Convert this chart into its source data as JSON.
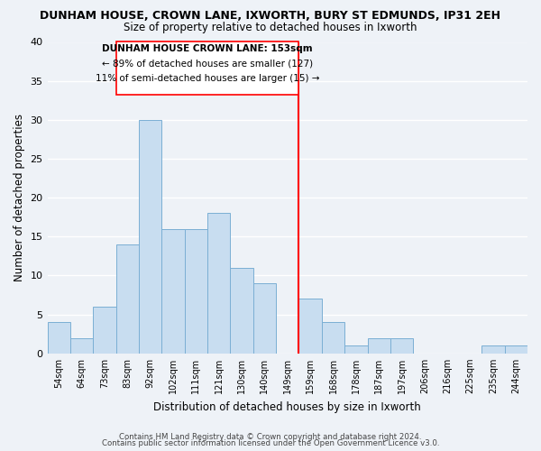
{
  "title": "DUNHAM HOUSE, CROWN LANE, IXWORTH, BURY ST EDMUNDS, IP31 2EH",
  "subtitle": "Size of property relative to detached houses in Ixworth",
  "xlabel": "Distribution of detached houses by size in Ixworth",
  "ylabel": "Number of detached properties",
  "bar_labels": [
    "54sqm",
    "64sqm",
    "73sqm",
    "83sqm",
    "92sqm",
    "102sqm",
    "111sqm",
    "121sqm",
    "130sqm",
    "140sqm",
    "149sqm",
    "159sqm",
    "168sqm",
    "178sqm",
    "187sqm",
    "197sqm",
    "206sqm",
    "216sqm",
    "225sqm",
    "235sqm",
    "244sqm"
  ],
  "bar_heights": [
    4,
    2,
    6,
    14,
    30,
    16,
    16,
    18,
    11,
    9,
    0,
    7,
    4,
    1,
    2,
    2,
    0,
    0,
    0,
    1,
    1
  ],
  "bar_color": "#c8ddf0",
  "bar_edge_color": "#7bafd4",
  "vline_x_index": 11,
  "vline_label": "DUNHAM HOUSE CROWN LANE: 153sqm",
  "annotation_line1": "← 89% of detached houses are smaller (127)",
  "annotation_line2": "11% of semi-detached houses are larger (15) →",
  "ylim": [
    0,
    40
  ],
  "yticks": [
    0,
    5,
    10,
    15,
    20,
    25,
    30,
    35,
    40
  ],
  "footer1": "Contains HM Land Registry data © Crown copyright and database right 2024.",
  "footer2": "Contains public sector information licensed under the Open Government Licence v3.0.",
  "bg_color": "#eef2f7",
  "grid_color": "#ffffff",
  "n_bins": 21
}
